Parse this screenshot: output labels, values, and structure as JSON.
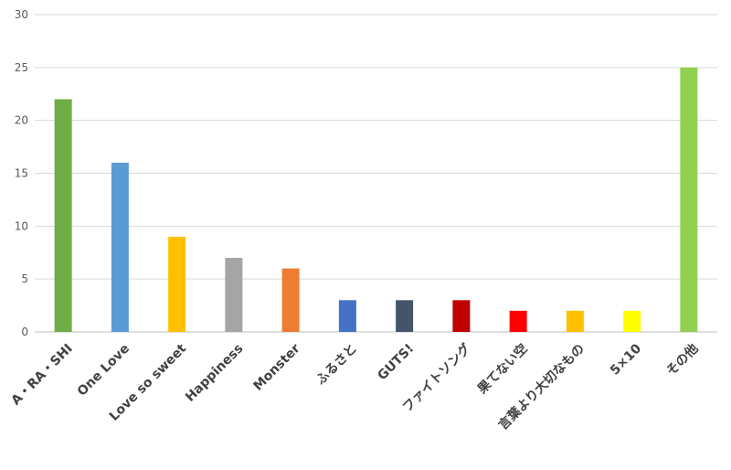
{
  "chart_data": {
    "type": "bar",
    "title": "",
    "xlabel": "",
    "ylabel": "",
    "ylim": [
      0,
      30
    ],
    "yticks": [
      0,
      5,
      10,
      15,
      20,
      25,
      30
    ],
    "grid": true,
    "legend": "none",
    "categories": [
      "A・RA・SHI",
      "One Love",
      "Love so sweet",
      "Happiness",
      "Monster",
      "ふるさと",
      "GUTS!",
      "ファイトソング",
      "果てない空",
      "言葉より大切なもの",
      "5×10",
      "その他"
    ],
    "values": [
      22,
      16,
      9,
      7,
      6,
      3,
      3,
      3,
      2,
      2,
      2,
      25
    ],
    "colors": [
      "#70AD47",
      "#5B9BD5",
      "#FFC000",
      "#A5A5A5",
      "#ED7D31",
      "#4472C4",
      "#44546A",
      "#C00000",
      "#FF0000",
      "#FFC000",
      "#FFFF00",
      "#92D050"
    ]
  }
}
